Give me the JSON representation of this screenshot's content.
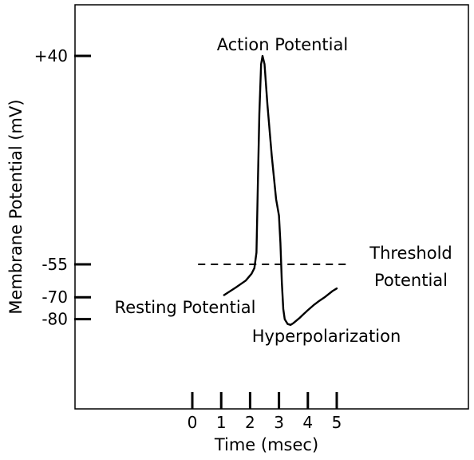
{
  "chart_data": {
    "type": "line",
    "title": "",
    "xlabel": "Time (msec)",
    "ylabel": "Membrane Potential (mV)",
    "xlim": [
      -0.3,
      5.5
    ],
    "ylim": [
      -90,
      40
    ],
    "x_ticks": [
      0,
      1,
      2,
      3,
      4,
      5
    ],
    "y_ticks": [
      40,
      -55,
      -70,
      -80
    ],
    "y_tick_labels": [
      "+40",
      "-55",
      "-70",
      "-80"
    ],
    "grid": false,
    "series": [
      {
        "x": [
          1.1,
          1.5,
          1.85,
          2.05,
          2.15,
          2.22,
          2.27,
          2.32,
          2.38,
          2.43,
          2.5,
          2.6,
          2.75,
          2.9,
          3.0,
          3.05,
          3.1,
          3.15,
          3.2,
          3.3,
          3.4,
          3.5,
          3.6,
          3.7,
          3.85,
          4.0,
          4.2,
          4.4,
          4.6,
          4.85,
          5.0
        ],
        "y": [
          -69,
          -65.6,
          -62.4,
          -59.3,
          -56.7,
          -49.6,
          -17.3,
          13.5,
          36.2,
          40,
          36.2,
          17.9,
          -5.7,
          -25.3,
          -32.8,
          -45.2,
          -63.3,
          -75.4,
          -80,
          -82.2,
          -82.6,
          -81.8,
          -80.7,
          -79.6,
          -77.7,
          -75.9,
          -73.6,
          -71.6,
          -69.8,
          -67.2,
          -66
        ]
      }
    ],
    "threshold": {
      "y": -55,
      "x_start": 0.2,
      "x_end": 5.4,
      "label_line1": "Threshold",
      "label_line2": "Potential"
    },
    "annotations": {
      "action_potential": "Action Potential",
      "resting_potential": "Resting Potential",
      "hyperpolarization": "Hyperpolarization"
    }
  }
}
